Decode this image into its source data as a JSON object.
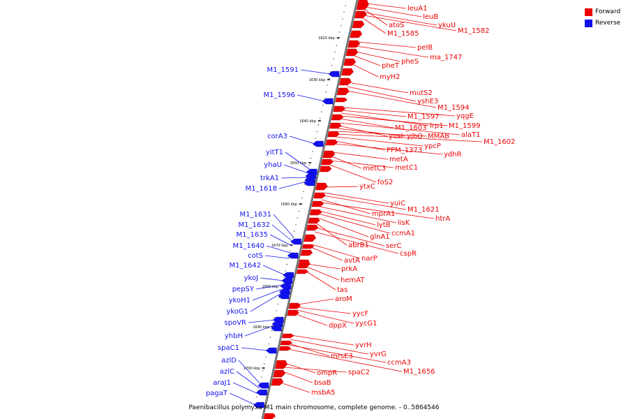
{
  "caption": "Paenibacillus polymyxa M1 main chromosome, complete genome. - 0..5864546",
  "legend": [
    {
      "label": "Forward",
      "color": "#ee0000"
    },
    {
      "label": "Reverse",
      "color": "#1111ee"
    }
  ],
  "colors": {
    "forward": "#ee0000",
    "reverse": "#1111ee",
    "backbone": "#777777"
  },
  "ticks": [
    "1620 kbp",
    "1630 kbp",
    "1640 kbp",
    "1650 kbp",
    "1660 kbp",
    "1670 kbp",
    "1680 kbp",
    "1690 kbp",
    "1700 kbp"
  ],
  "forward_genes": [
    "leuA1",
    "leuB",
    "atoS",
    "ykuU",
    "M1_1582",
    "M1_1585",
    "pelB",
    "ma_1747",
    "pheS",
    "pheT",
    "myH2",
    "mutS2",
    "yshE3",
    "M1_1594",
    "yqgE",
    "M1_1597",
    "lrp1",
    "M1_1599",
    "M1_1603",
    "alaT1",
    "yusI",
    "yjbO",
    "MMAB",
    "M1_1602",
    "ypcP",
    "PPM_1373",
    "ydhR",
    "metA",
    "metC3",
    "metC1",
    "foS2",
    "ytxC",
    "yuiC",
    "M1_1621",
    "mprA1",
    "htrA",
    "lisK",
    "lytB",
    "ccmA1",
    "glnA1",
    "abrB1",
    "serC",
    "cspR",
    "narP",
    "avtA",
    "prkA",
    "hemAT",
    "tas",
    "aroM",
    "yycF",
    "yycG1",
    "dppX",
    "yvrH",
    "yvrG",
    "mrsE3",
    "ccmA3",
    "M1_1656",
    "ompR",
    "spaC2",
    "bsaB",
    "msbA5"
  ],
  "reverse_genes": [
    "M1_1591",
    "M1_1596",
    "corA3",
    "yitT1",
    "yhaU",
    "trkA1",
    "M1_1618",
    "M1_1631",
    "M1_1632",
    "M1_1635",
    "M1_1640",
    "cotS",
    "M1_1642",
    "ykoJ",
    "pepSY",
    "ykoH1",
    "ykoG1",
    "spoVR",
    "yhbH",
    "spaC1",
    "azlD",
    "azlC",
    "araJ1",
    "pagaT"
  ]
}
